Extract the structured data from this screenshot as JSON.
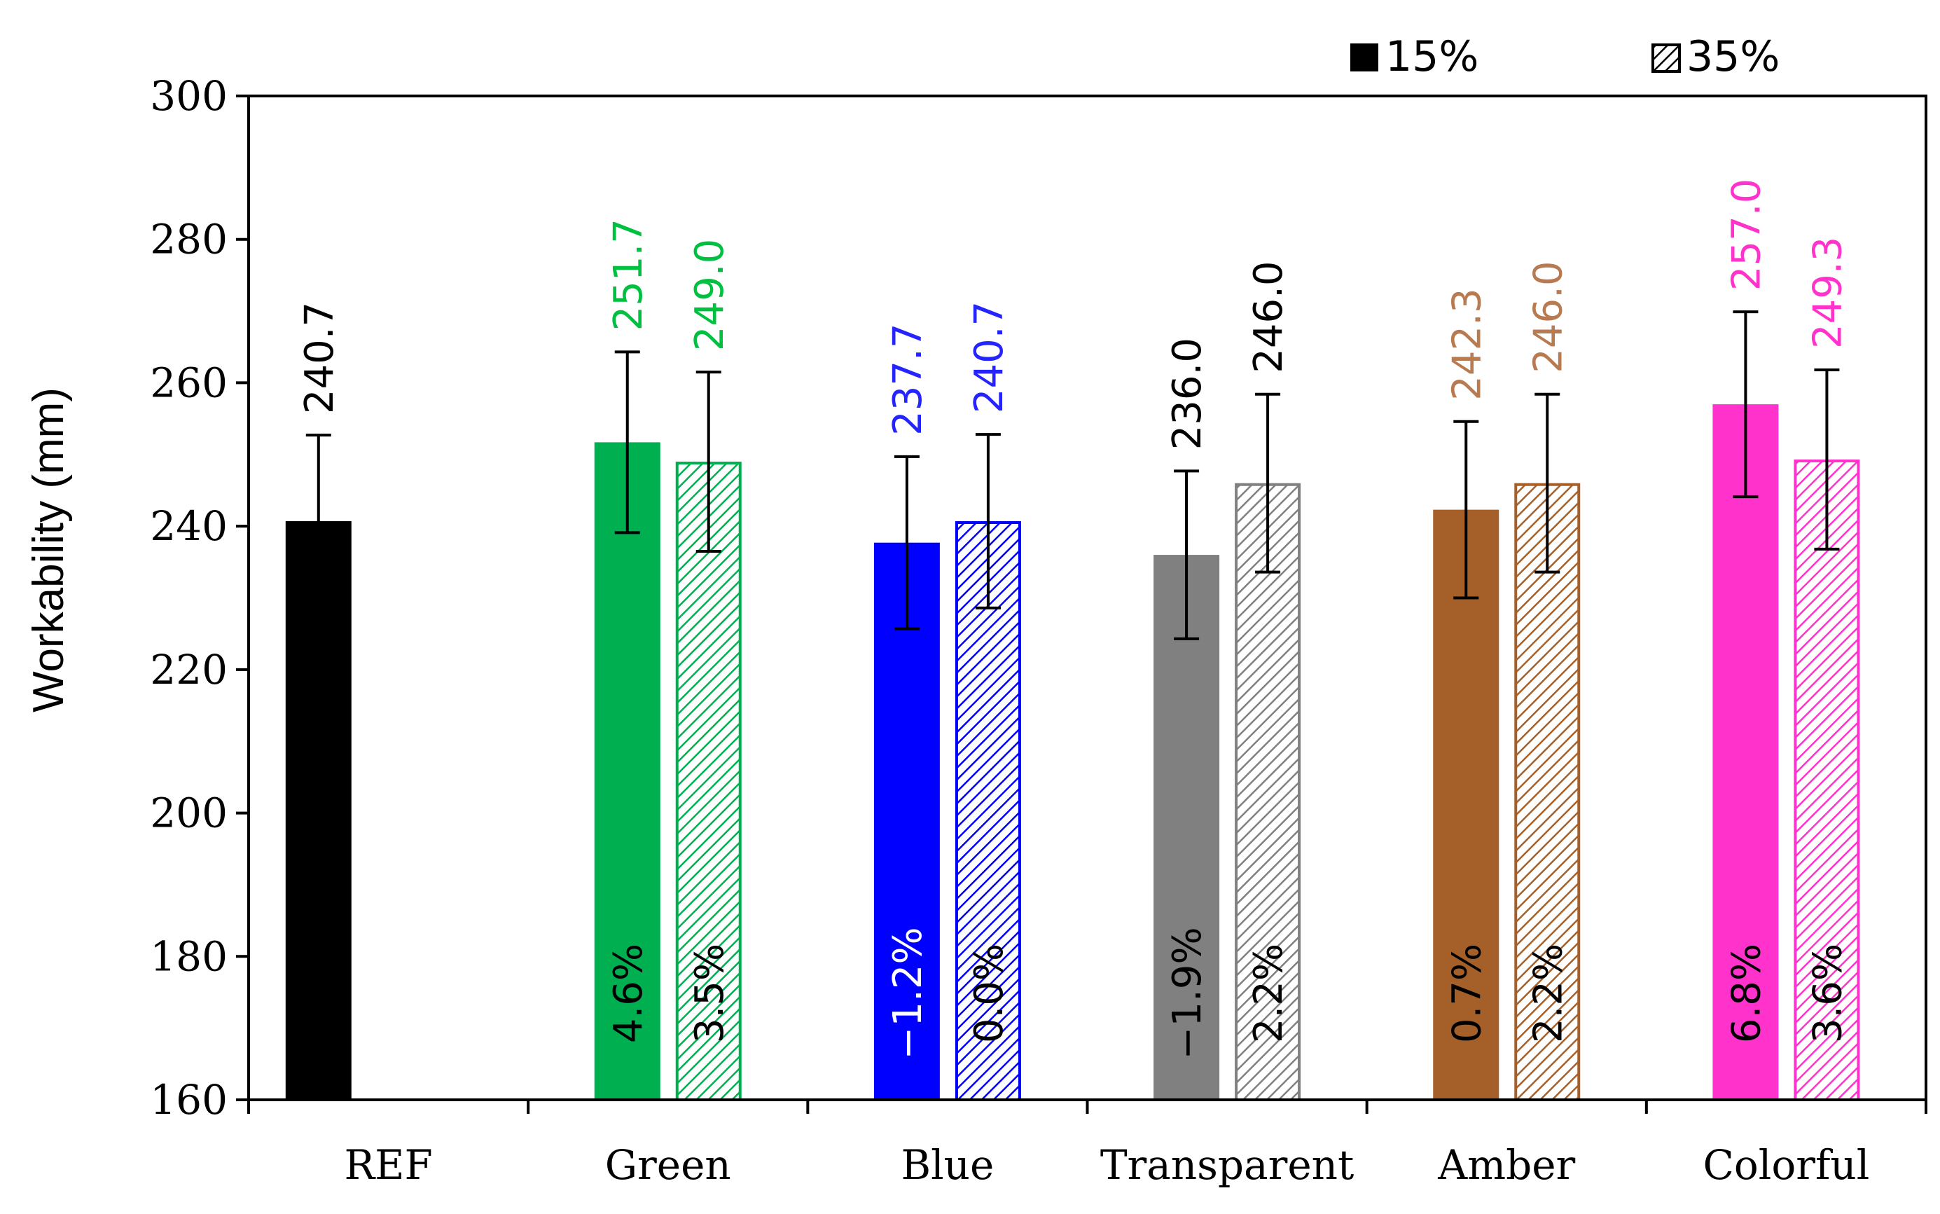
{
  "chart_data": {
    "type": "bar",
    "title": "",
    "xlabel": "",
    "ylabel": "Workability (mm)",
    "ylim": [
      160,
      300
    ],
    "yticks": [
      160,
      180,
      200,
      220,
      240,
      260,
      280,
      300
    ],
    "grid": false,
    "legend_position": "top-right",
    "categories": [
      "REF",
      "Green",
      "Blue",
      "Transparent",
      "Amber",
      "Colorful"
    ],
    "category_colors": [
      "#000000",
      "#00b050",
      "#0000ff",
      "#808080",
      "#a5602a",
      "#ff33cc"
    ],
    "value_label_colors": [
      "#000000",
      "#00c040",
      "#2424ff",
      "#000000",
      "#b87a50",
      "#ff33cc"
    ],
    "pct_label_colors": [
      "#000000",
      "#000000",
      "#ffffff",
      "#000000",
      "#000000",
      "#000000"
    ],
    "pct_label_colors_35": [
      "#000000",
      "#000000",
      "#000000",
      "#000000",
      "#000000",
      "#000000"
    ],
    "series": [
      {
        "name": "15%",
        "fill": "solid",
        "values": [
          240.7,
          251.7,
          237.7,
          236.0,
          242.3,
          257.0
        ],
        "value_labels": [
          "240.7",
          "251.7",
          "237.7",
          "236.0",
          "242.3",
          "257.0"
        ],
        "errors": [
          12.0,
          12.6,
          12.0,
          11.7,
          12.3,
          12.9
        ],
        "pct_labels": [
          "",
          "4.6%",
          "−1.2%",
          "−1.9%",
          "0.7%",
          "6.8%"
        ]
      },
      {
        "name": "35%",
        "fill": "hatched",
        "values": [
          null,
          249.0,
          240.7,
          246.0,
          246.0,
          249.3
        ],
        "value_labels": [
          "",
          "249.0",
          "240.7",
          "246.0",
          "246.0",
          "249.3"
        ],
        "errors": [
          null,
          12.5,
          12.1,
          12.4,
          12.4,
          12.5
        ],
        "pct_labels": [
          "",
          "3.5%",
          "0.0%",
          "2.2%",
          "2.2%",
          "3.6%"
        ]
      }
    ]
  }
}
